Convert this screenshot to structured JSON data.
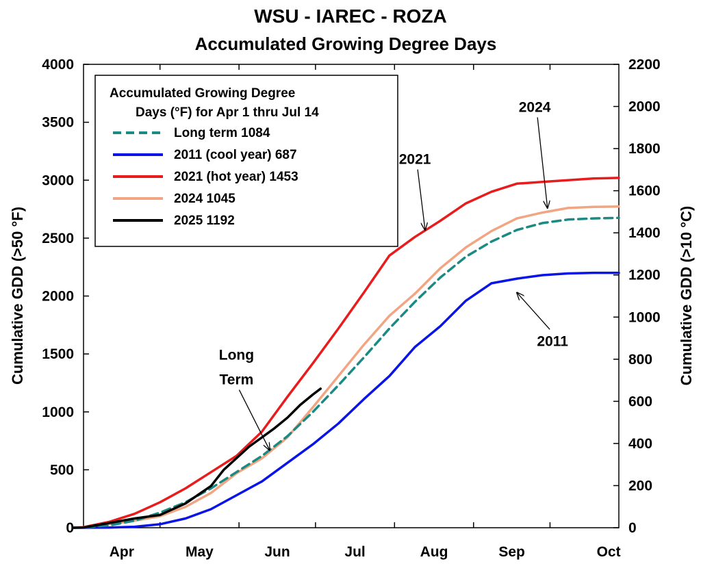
{
  "chart_data": {
    "type": "line",
    "title": "WSU - IAREC - ROZA",
    "subtitle": "Accumulated Growing Degree Days",
    "ylabel": "Cumulative GDD (>50 °F)",
    "y2label": "Cumulative GDD (>10 °C)",
    "ylim": [
      0,
      4000
    ],
    "y2lim": [
      0,
      2200
    ],
    "yticks": [
      0,
      500,
      1000,
      1500,
      2000,
      2500,
      3000,
      3500,
      4000
    ],
    "y2ticks": [
      0,
      200,
      400,
      600,
      800,
      1000,
      1200,
      1400,
      1600,
      1800,
      2000,
      2200
    ],
    "xlim": [
      0,
      210
    ],
    "months": [
      {
        "label": "Apr",
        "start": 0,
        "center": 15
      },
      {
        "label": "May",
        "start": 30,
        "center": 45.5
      },
      {
        "label": "Jun",
        "start": 61,
        "center": 76
      },
      {
        "label": "Jul",
        "start": 91,
        "center": 106.5
      },
      {
        "label": "Aug",
        "start": 122,
        "center": 137.5
      },
      {
        "label": "Sep",
        "start": 153,
        "center": 168
      },
      {
        "label": "Oct",
        "start": 183,
        "center": 206
      }
    ],
    "legend": {
      "title_line1": "Accumulated Growing Degree",
      "title_line2": "Days (°F) for Apr 1 thru Jul 14",
      "position": "top-left"
    },
    "series": [
      {
        "name": "Long term 1084",
        "color": "#1a8a82",
        "dash": true,
        "points": [
          [
            -4,
            0
          ],
          [
            0,
            2
          ],
          [
            10,
            20
          ],
          [
            20,
            60
          ],
          [
            30,
            130
          ],
          [
            40,
            220
          ],
          [
            50,
            340
          ],
          [
            60,
            480
          ],
          [
            70,
            620
          ],
          [
            80,
            790
          ],
          [
            90,
            1000
          ],
          [
            100,
            1230
          ],
          [
            110,
            1470
          ],
          [
            120,
            1720
          ],
          [
            130,
            1950
          ],
          [
            140,
            2160
          ],
          [
            150,
            2340
          ],
          [
            160,
            2470
          ],
          [
            170,
            2570
          ],
          [
            180,
            2630
          ],
          [
            190,
            2660
          ],
          [
            200,
            2670
          ],
          [
            210,
            2675
          ]
        ]
      },
      {
        "name": "2011 (cool year)  687",
        "color": "#0a14e6",
        "dash": false,
        "points": [
          [
            -4,
            0
          ],
          [
            10,
            2
          ],
          [
            20,
            8
          ],
          [
            30,
            30
          ],
          [
            40,
            80
          ],
          [
            50,
            160
          ],
          [
            60,
            280
          ],
          [
            70,
            400
          ],
          [
            80,
            560
          ],
          [
            90,
            720
          ],
          [
            100,
            900
          ],
          [
            110,
            1110
          ],
          [
            120,
            1310
          ],
          [
            130,
            1560
          ],
          [
            140,
            1740
          ],
          [
            150,
            1960
          ],
          [
            160,
            2110
          ],
          [
            170,
            2150
          ],
          [
            180,
            2180
          ],
          [
            190,
            2195
          ],
          [
            200,
            2200
          ],
          [
            210,
            2200
          ]
        ]
      },
      {
        "name": "2021 (hot year) 1453",
        "color": "#e81c1c",
        "dash": false,
        "points": [
          [
            -4,
            0
          ],
          [
            0,
            5
          ],
          [
            10,
            50
          ],
          [
            20,
            120
          ],
          [
            30,
            220
          ],
          [
            40,
            340
          ],
          [
            50,
            480
          ],
          [
            60,
            620
          ],
          [
            70,
            830
          ],
          [
            80,
            1130
          ],
          [
            90,
            1420
          ],
          [
            100,
            1720
          ],
          [
            110,
            2030
          ],
          [
            120,
            2350
          ],
          [
            130,
            2510
          ],
          [
            140,
            2650
          ],
          [
            150,
            2800
          ],
          [
            160,
            2900
          ],
          [
            170,
            2970
          ],
          [
            180,
            2985
          ],
          [
            190,
            3000
          ],
          [
            200,
            3015
          ],
          [
            210,
            3020
          ]
        ]
      },
      {
        "name": "2024 1045",
        "color": "#f2a582",
        "dash": false,
        "points": [
          [
            -4,
            0
          ],
          [
            0,
            3
          ],
          [
            10,
            30
          ],
          [
            20,
            60
          ],
          [
            30,
            100
          ],
          [
            40,
            180
          ],
          [
            50,
            300
          ],
          [
            60,
            470
          ],
          [
            70,
            600
          ],
          [
            80,
            780
          ],
          [
            90,
            1040
          ],
          [
            100,
            1310
          ],
          [
            110,
            1580
          ],
          [
            120,
            1830
          ],
          [
            130,
            2020
          ],
          [
            140,
            2240
          ],
          [
            150,
            2420
          ],
          [
            160,
            2560
          ],
          [
            170,
            2670
          ],
          [
            180,
            2720
          ],
          [
            190,
            2760
          ],
          [
            200,
            2770
          ],
          [
            210,
            2772
          ]
        ]
      },
      {
        "name": "2025 1192",
        "color": "#000000",
        "dash": false,
        "points": [
          [
            -4,
            0
          ],
          [
            0,
            2
          ],
          [
            10,
            40
          ],
          [
            20,
            80
          ],
          [
            30,
            110
          ],
          [
            40,
            210
          ],
          [
            50,
            360
          ],
          [
            55,
            500
          ],
          [
            60,
            600
          ],
          [
            65,
            700
          ],
          [
            70,
            780
          ],
          [
            75,
            860
          ],
          [
            80,
            950
          ],
          [
            85,
            1060
          ],
          [
            90,
            1150
          ],
          [
            93,
            1200
          ]
        ]
      }
    ],
    "annotations": [
      {
        "text": "2021",
        "label_x": 130,
        "label_y": 3140,
        "arrow_to_x": 134,
        "arrow_to_y": 2570
      },
      {
        "text": "2024",
        "label_x": 177,
        "label_y": 3590,
        "arrow_to_x": 182,
        "arrow_to_y": 2760
      },
      {
        "text": "2011",
        "label_x": 184,
        "label_y": 1570,
        "arrow_to_x": 170,
        "arrow_to_y": 2030
      },
      {
        "text": "Long",
        "text2": "Term",
        "label_x": 60,
        "label_y": 1450,
        "arrow_to_x": 73,
        "arrow_to_y": 670
      }
    ]
  }
}
